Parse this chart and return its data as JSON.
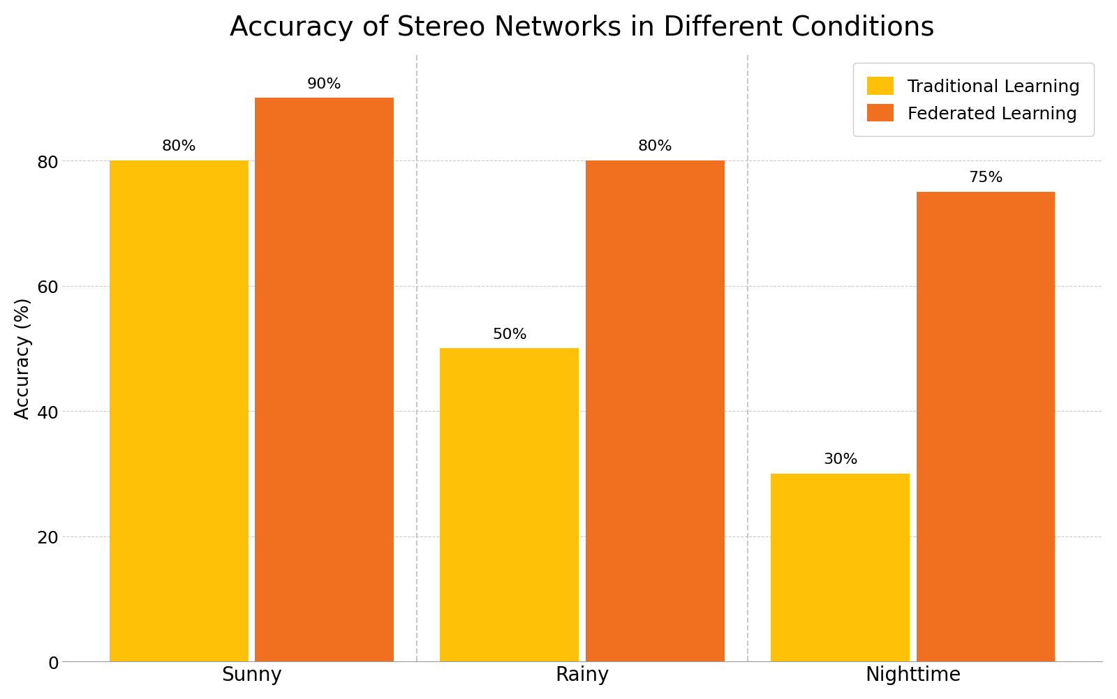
{
  "title": "Accuracy of Stereo Networks in Different Conditions",
  "categories": [
    "Sunny",
    "Rainy",
    "Nighttime"
  ],
  "traditional_values": [
    80,
    50,
    30
  ],
  "federated_values": [
    90,
    80,
    75
  ],
  "traditional_color": "#FFC107",
  "federated_color": "#F07020",
  "ylabel": "Accuracy (%)",
  "ylim": [
    0,
    97
  ],
  "yticks": [
    0,
    20,
    40,
    60,
    80
  ],
  "legend_labels": [
    "Traditional Learning",
    "Federated Learning"
  ],
  "title_fontsize": 28,
  "label_fontsize": 19,
  "tick_fontsize": 18,
  "annotation_fontsize": 16,
  "bar_width": 0.42,
  "grid_color": "#BBBBBB",
  "grid_linestyle": "--",
  "grid_alpha": 0.8
}
